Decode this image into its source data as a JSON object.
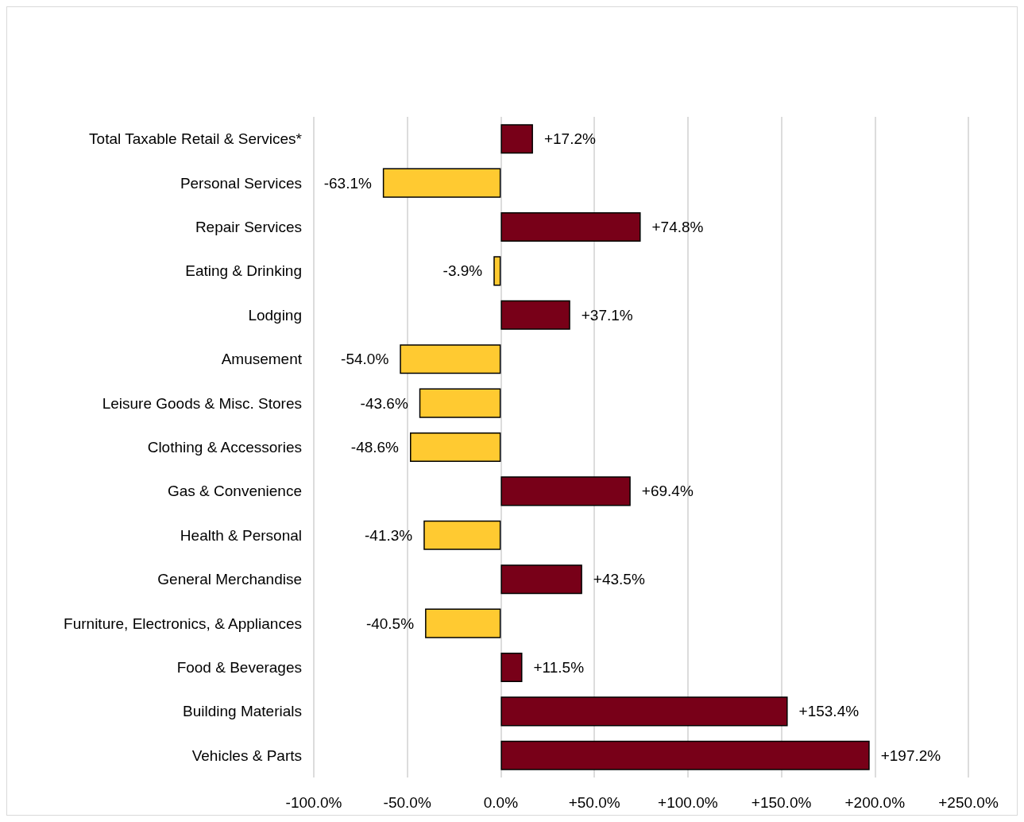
{
  "chart_data": {
    "type": "bar",
    "orientation": "horizontal",
    "categories": [
      "Total Taxable Retail & Services*",
      "Personal Services",
      "Repair Services",
      "Eating & Drinking",
      "Lodging",
      "Amusement",
      "Leisure Goods & Misc. Stores",
      "Clothing & Accessories",
      "Gas & Convenience",
      "Health & Personal",
      "General Merchandise",
      "Furniture, Electronics, & Appliances",
      "Food & Beverages",
      "Building Materials",
      "Vehicles & Parts"
    ],
    "values": [
      17.2,
      -63.1,
      74.8,
      -3.9,
      37.1,
      -54.0,
      -43.6,
      -48.6,
      69.4,
      -41.3,
      43.5,
      -40.5,
      11.5,
      153.4,
      197.2
    ],
    "value_labels": [
      "+17.2%",
      "-63.1%",
      "+74.8%",
      "-3.9%",
      "+37.1%",
      "-54.0%",
      "-43.6%",
      "-48.6%",
      "+69.4%",
      "-41.3%",
      "+43.5%",
      "-40.5%",
      "+11.5%",
      "+153.4%",
      "+197.2%"
    ],
    "colors": [
      "#780018",
      "#ffca31",
      "#780018",
      "#ffca31",
      "#780018",
      "#ffca31",
      "#ffca31",
      "#ffca31",
      "#780018",
      "#ffca31",
      "#780018",
      "#ffca31",
      "#780018",
      "#780018",
      "#780018"
    ],
    "xlim": [
      -100,
      250
    ],
    "xticks": [
      {
        "value": -100,
        "label": "-100.0%"
      },
      {
        "value": -50,
        "label": "-50.0%"
      },
      {
        "value": 0,
        "label": "0.0%"
      },
      {
        "value": 50,
        "label": "+50.0%"
      },
      {
        "value": 100,
        "label": "+100.0%"
      },
      {
        "value": 150,
        "label": "+150.0%"
      },
      {
        "value": 200,
        "label": "+200.0%"
      },
      {
        "value": 250,
        "label": "+250.0%"
      }
    ],
    "grid": "x"
  }
}
